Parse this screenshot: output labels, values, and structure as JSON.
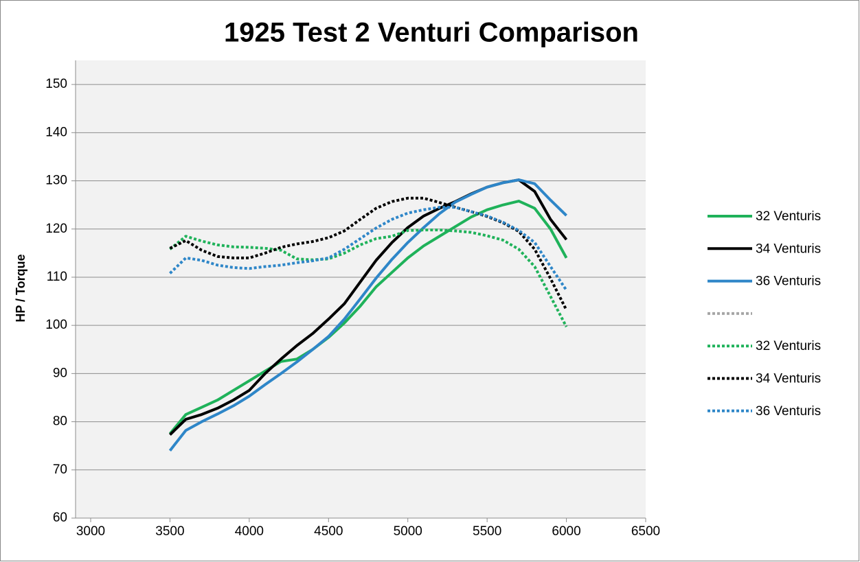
{
  "chart_data": {
    "type": "line",
    "title": "1925 Test 2 Venturi Comparison",
    "ylabel": "HP / Torque",
    "x": [
      3500,
      3600,
      3700,
      3800,
      3900,
      4000,
      4100,
      4200,
      4300,
      4400,
      4500,
      4600,
      4700,
      4800,
      4900,
      5000,
      5100,
      5200,
      5300,
      5400,
      5500,
      5600,
      5700,
      5800,
      5900,
      6000
    ],
    "xlim": [
      3000,
      6500
    ],
    "xticks": [
      3000,
      3500,
      4000,
      4500,
      5000,
      5500,
      6000,
      6500
    ],
    "ylim": [
      60,
      155
    ],
    "yticks": [
      60,
      70,
      80,
      90,
      100,
      110,
      120,
      130,
      140,
      150
    ],
    "grid": true,
    "legend": "right",
    "series": [
      {
        "name": "32 Venturis",
        "color": "#1fb25a",
        "style": "solid",
        "values": [
          77.5,
          81.5,
          83,
          84.5,
          86.5,
          88.5,
          90.5,
          92.5,
          93,
          95,
          97.5,
          100.5,
          104,
          108,
          111,
          114,
          116.5,
          118.5,
          120.5,
          122.5,
          124,
          125,
          125.8,
          124.3,
          120,
          114
        ]
      },
      {
        "name": "34 Venturis",
        "color": "#000000",
        "style": "solid",
        "values": [
          77.3,
          80.5,
          81.5,
          82.8,
          84.5,
          86.5,
          90,
          93,
          95.8,
          98.3,
          101.3,
          104.5,
          109,
          113.5,
          117.2,
          120.3,
          122.7,
          124.3,
          125.7,
          127.3,
          128.7,
          129.6,
          130.2,
          127.8,
          122,
          117.8
        ]
      },
      {
        "name": "36 Venturis",
        "color": "#2e86c8",
        "style": "solid",
        "values": [
          74,
          78.2,
          80,
          81.6,
          83.3,
          85.3,
          87.7,
          90,
          92.4,
          95,
          97.7,
          101.3,
          105.5,
          109.8,
          113.7,
          117.2,
          120.3,
          123.2,
          125.6,
          127.2,
          128.7,
          129.6,
          130.2,
          129.4,
          126,
          122.8
        ]
      },
      {
        "color": "#a6a6a6",
        "style": "dotted",
        "values": [
          null,
          null,
          null,
          null,
          null,
          null,
          null,
          null,
          null,
          null,
          null,
          null,
          null,
          null,
          null,
          null,
          null,
          null,
          null,
          null,
          null,
          null,
          null,
          null,
          null,
          null
        ]
      },
      {
        "name": "32 Venturis",
        "color": "#1fb25a",
        "style": "dotted",
        "values": [
          115.8,
          118.5,
          117.5,
          116.7,
          116.3,
          116.2,
          116,
          115.6,
          113.8,
          113.6,
          113.8,
          115,
          116.7,
          118,
          118.5,
          119.7,
          119.8,
          119.8,
          119.6,
          119.3,
          118.6,
          117.7,
          115.8,
          112.2,
          106,
          99.7
        ]
      },
      {
        "name": "34 Venturis",
        "color": "#000000",
        "style": "dotted",
        "values": [
          116,
          117.6,
          115.6,
          114.3,
          114,
          114,
          115,
          116.2,
          116.9,
          117.4,
          118.2,
          119.6,
          122,
          124.3,
          125.7,
          126.4,
          126.4,
          125.5,
          124.5,
          123.6,
          122.6,
          121.3,
          119.5,
          115.8,
          109.7,
          103.2
        ]
      },
      {
        "name": "36 Venturis",
        "color": "#2e86c8",
        "style": "dotted",
        "values": [
          110.8,
          114,
          113.5,
          112.5,
          112,
          111.8,
          112.2,
          112.5,
          113,
          113.4,
          114,
          115.8,
          118,
          120.2,
          122,
          123.3,
          124,
          124.5,
          124.5,
          123.6,
          122.7,
          121.4,
          119.7,
          117.2,
          112.2,
          107.3
        ]
      }
    ]
  }
}
